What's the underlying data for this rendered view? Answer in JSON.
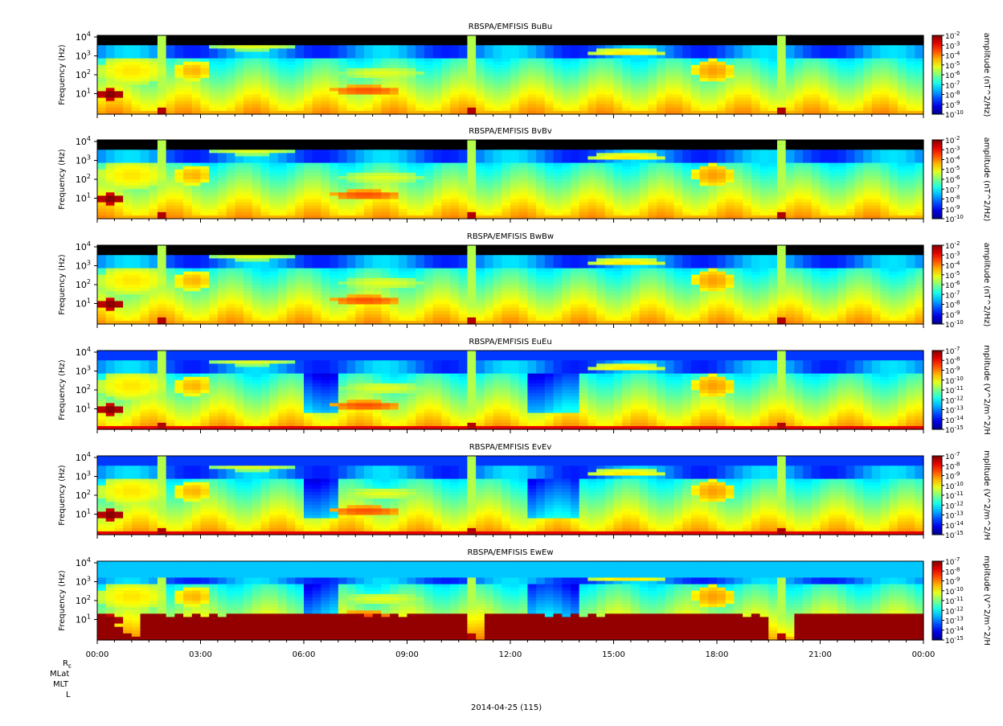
{
  "figure": {
    "date_label": "2014-04-25 (115)",
    "ephemeris_labels": [
      "R_E",
      "MLat",
      "MLT",
      "L"
    ]
  },
  "chart_data": [
    {
      "type": "heatmap",
      "title": "RBSPA/EMFISIS  BuBu",
      "ylabel": "Frequency (Hz)",
      "ylim": [
        2,
        12000
      ],
      "yscale": "log",
      "y_ticks": [
        {
          "m": "10",
          "e": "4"
        },
        {
          "m": "10",
          "e": "3"
        },
        {
          "m": "10",
          "e": "2"
        },
        {
          "m": "10",
          "e": "1"
        }
      ],
      "x_ticks": [
        "00:00",
        "03:00",
        "06:00",
        "09:00",
        "12:00",
        "15:00",
        "18:00",
        "21:00",
        "00:00"
      ],
      "xlim_hours": [
        0,
        24
      ],
      "colorbar": {
        "label": "amplitude (nT^2/Hz)",
        "min_exp": -10,
        "max_exp": -2,
        "scale": "log",
        "tick_labels": [
          {
            "m": "10",
            "e": "-2"
          },
          {
            "m": "10",
            "e": "-3"
          },
          {
            "m": "10",
            "e": "-4"
          },
          {
            "m": "10",
            "e": "-5"
          },
          {
            "m": "10",
            "e": "-6"
          },
          {
            "m": "10",
            "e": "-7"
          },
          {
            "m": "10",
            "e": "-8"
          },
          {
            "m": "10",
            "e": "-9"
          },
          {
            "m": "10",
            "e": "-10"
          }
        ]
      }
    },
    {
      "type": "heatmap",
      "title": "RBSPA/EMFISIS  BvBv",
      "ylabel": "Frequency (Hz)",
      "ylim": [
        2,
        12000
      ],
      "yscale": "log",
      "y_ticks": [
        {
          "m": "10",
          "e": "4"
        },
        {
          "m": "10",
          "e": "3"
        },
        {
          "m": "10",
          "e": "2"
        },
        {
          "m": "10",
          "e": "1"
        }
      ],
      "x_ticks": [
        "00:00",
        "03:00",
        "06:00",
        "09:00",
        "12:00",
        "15:00",
        "18:00",
        "21:00",
        "00:00"
      ],
      "xlim_hours": [
        0,
        24
      ],
      "colorbar": {
        "label": "amplitude (nT^2/Hz)",
        "min_exp": -10,
        "max_exp": -2,
        "scale": "log",
        "tick_labels": [
          {
            "m": "10",
            "e": "-2"
          },
          {
            "m": "10",
            "e": "-3"
          },
          {
            "m": "10",
            "e": "-4"
          },
          {
            "m": "10",
            "e": "-5"
          },
          {
            "m": "10",
            "e": "-6"
          },
          {
            "m": "10",
            "e": "-7"
          },
          {
            "m": "10",
            "e": "-8"
          },
          {
            "m": "10",
            "e": "-9"
          },
          {
            "m": "10",
            "e": "-10"
          }
        ]
      }
    },
    {
      "type": "heatmap",
      "title": "RBSPA/EMFISIS  BwBw",
      "ylabel": "Frequency (Hz)",
      "ylim": [
        2,
        12000
      ],
      "yscale": "log",
      "y_ticks": [
        {
          "m": "10",
          "e": "4"
        },
        {
          "m": "10",
          "e": "3"
        },
        {
          "m": "10",
          "e": "2"
        },
        {
          "m": "10",
          "e": "1"
        }
      ],
      "x_ticks": [
        "00:00",
        "03:00",
        "06:00",
        "09:00",
        "12:00",
        "15:00",
        "18:00",
        "21:00",
        "00:00"
      ],
      "xlim_hours": [
        0,
        24
      ],
      "colorbar": {
        "label": "amplitude (nT^2/Hz)",
        "min_exp": -10,
        "max_exp": -2,
        "scale": "log",
        "tick_labels": [
          {
            "m": "10",
            "e": "-2"
          },
          {
            "m": "10",
            "e": "-3"
          },
          {
            "m": "10",
            "e": "-4"
          },
          {
            "m": "10",
            "e": "-5"
          },
          {
            "m": "10",
            "e": "-6"
          },
          {
            "m": "10",
            "e": "-7"
          },
          {
            "m": "10",
            "e": "-8"
          },
          {
            "m": "10",
            "e": "-9"
          },
          {
            "m": "10",
            "e": "-10"
          }
        ]
      }
    },
    {
      "type": "heatmap",
      "title": "RBSPA/EMFISIS  EuEu",
      "ylabel": "Frequency (Hz)",
      "ylim": [
        2,
        12000
      ],
      "yscale": "log",
      "y_ticks": [
        {
          "m": "10",
          "e": "4"
        },
        {
          "m": "10",
          "e": "3"
        },
        {
          "m": "10",
          "e": "2"
        },
        {
          "m": "10",
          "e": "1"
        }
      ],
      "x_ticks": [
        "00:00",
        "03:00",
        "06:00",
        "09:00",
        "12:00",
        "15:00",
        "18:00",
        "21:00",
        "00:00"
      ],
      "xlim_hours": [
        0,
        24
      ],
      "colorbar": {
        "label": "mplitude (V^2/m^2/H",
        "min_exp": -15,
        "max_exp": -7,
        "scale": "log",
        "tick_labels": [
          {
            "m": "10",
            "e": "-7"
          },
          {
            "m": "10",
            "e": "-8"
          },
          {
            "m": "10",
            "e": "-9"
          },
          {
            "m": "10",
            "e": "-10"
          },
          {
            "m": "10",
            "e": "-11"
          },
          {
            "m": "10",
            "e": "-12"
          },
          {
            "m": "10",
            "e": "-13"
          },
          {
            "m": "10",
            "e": "-14"
          },
          {
            "m": "10",
            "e": "-15"
          }
        ]
      }
    },
    {
      "type": "heatmap",
      "title": "RBSPA/EMFISIS  EvEv",
      "ylabel": "Frequency (Hz)",
      "ylim": [
        2,
        12000
      ],
      "yscale": "log",
      "y_ticks": [
        {
          "m": "10",
          "e": "4"
        },
        {
          "m": "10",
          "e": "3"
        },
        {
          "m": "10",
          "e": "2"
        },
        {
          "m": "10",
          "e": "1"
        }
      ],
      "x_ticks": [
        "00:00",
        "03:00",
        "06:00",
        "09:00",
        "12:00",
        "15:00",
        "18:00",
        "21:00",
        "00:00"
      ],
      "xlim_hours": [
        0,
        24
      ],
      "colorbar": {
        "label": "mplitude (V^2/m^2/H",
        "min_exp": -15,
        "max_exp": -7,
        "scale": "log",
        "tick_labels": [
          {
            "m": "10",
            "e": "-7"
          },
          {
            "m": "10",
            "e": "-8"
          },
          {
            "m": "10",
            "e": "-9"
          },
          {
            "m": "10",
            "e": "-10"
          },
          {
            "m": "10",
            "e": "-11"
          },
          {
            "m": "10",
            "e": "-12"
          },
          {
            "m": "10",
            "e": "-13"
          },
          {
            "m": "10",
            "e": "-14"
          },
          {
            "m": "10",
            "e": "-15"
          }
        ]
      }
    },
    {
      "type": "heatmap",
      "title": "RBSPA/EMFISIS  EwEw",
      "ylabel": "Frequency (Hz)",
      "ylim": [
        2,
        12000
      ],
      "yscale": "log",
      "y_ticks": [
        {
          "m": "10",
          "e": "4"
        },
        {
          "m": "10",
          "e": "3"
        },
        {
          "m": "10",
          "e": "2"
        },
        {
          "m": "10",
          "e": "1"
        }
      ],
      "x_ticks": [
        "00:00",
        "03:00",
        "06:00",
        "09:00",
        "12:00",
        "15:00",
        "18:00",
        "21:00",
        "00:00"
      ],
      "xlim_hours": [
        0,
        24
      ],
      "colorbar": {
        "label": "mplitude (V^2/m^2/H",
        "min_exp": -15,
        "max_exp": -7,
        "scale": "log",
        "tick_labels": [
          {
            "m": "10",
            "e": "-7"
          },
          {
            "m": "10",
            "e": "-8"
          },
          {
            "m": "10",
            "e": "-9"
          },
          {
            "m": "10",
            "e": "-10"
          },
          {
            "m": "10",
            "e": "-11"
          },
          {
            "m": "10",
            "e": "-12"
          },
          {
            "m": "10",
            "e": "-13"
          },
          {
            "m": "10",
            "e": "-14"
          },
          {
            "m": "10",
            "e": "-15"
          }
        ]
      }
    }
  ]
}
